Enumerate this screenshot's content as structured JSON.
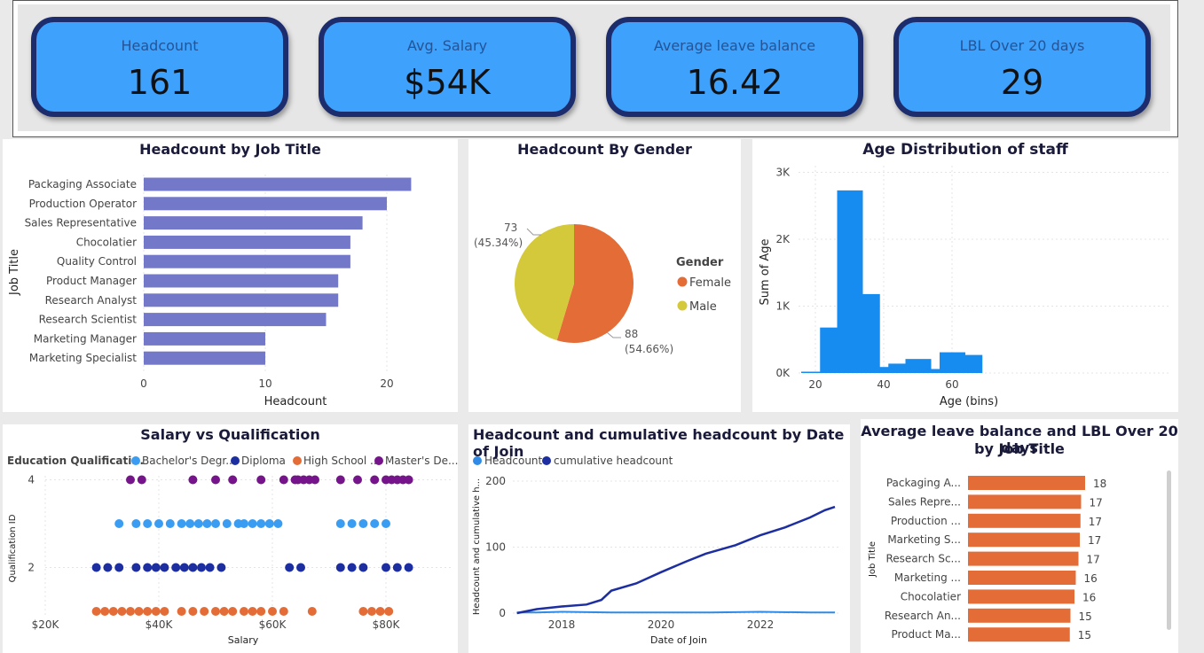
{
  "kpis": [
    {
      "title": "Headcount",
      "value": "161"
    },
    {
      "title": "Avg. Salary",
      "value": "$54K"
    },
    {
      "title": "Average leave balance",
      "value": "16.42"
    },
    {
      "title": "LBL Over 20 days",
      "value": "29"
    }
  ],
  "colors": {
    "kpi_fill": "#3ea1fb",
    "kpi_border": "#1c2c6d",
    "bar_purple": "#7478c9",
    "female": "#e46c36",
    "male": "#d4c93a",
    "bachelor": "#3b9df2",
    "diploma": "#1c2ea0",
    "highschool": "#e46c36",
    "masters": "#76158b",
    "headcount_line": "#2f8be6",
    "cumulative_line": "#1c2ea0",
    "age_bar": "#168bf0",
    "leave_bar": "#e46c36"
  },
  "chart_data": [
    {
      "id": "job",
      "type": "bar",
      "orientation": "horizontal",
      "title": "Headcount by Job Title",
      "xlabel": "Headcount",
      "ylabel": "Job Title",
      "categories": [
        "Packaging Associate",
        "Production Operator",
        "Sales Representative",
        "Chocolatier",
        "Quality Control",
        "Product Manager",
        "Research Analyst",
        "Research Scientist",
        "Marketing Manager",
        "Marketing Specialist"
      ],
      "values": [
        22,
        20,
        18,
        17,
        17,
        16,
        16,
        15,
        10,
        10
      ],
      "xlim": [
        0,
        24
      ],
      "xticks": [
        "0",
        "10",
        "20"
      ],
      "grid": true
    },
    {
      "id": "gender",
      "type": "pie",
      "title": "Headcount By Gender",
      "legend_title": "Gender",
      "legend_position": "right",
      "slices": [
        {
          "label": "Female",
          "value": 88,
          "count_label": "88",
          "pct_label": "(54.66%)"
        },
        {
          "label": "Male",
          "value": 73,
          "count_label": "73",
          "pct_label": "(45.34%)"
        }
      ]
    },
    {
      "id": "age",
      "type": "bar",
      "title": "Age Distribution of staff",
      "xlabel": "Age (bins)",
      "ylabel": "Sum of Age",
      "x": [
        20,
        25,
        30,
        35,
        40,
        45,
        50,
        55,
        60,
        65
      ],
      "values": [
        20,
        680,
        2730,
        1180,
        90,
        140,
        210,
        60,
        310,
        270
      ],
      "ylim": [
        0,
        3000
      ],
      "xlim": [
        17.5,
        70
      ],
      "yticks": [
        "0K",
        "1K",
        "2K",
        "3K"
      ],
      "xticks": [
        "20",
        "40",
        "60"
      ],
      "grid": true
    },
    {
      "id": "salary",
      "type": "scatter",
      "title": "Salary vs Qualification",
      "legend_title": "Education Qualificati...",
      "legend_position": "top",
      "xlabel": "Salary",
      "ylabel": "Qualification ID",
      "xlim": [
        20000,
        90000
      ],
      "ylim": [
        1,
        4
      ],
      "xticks": [
        "$20K",
        "$40K",
        "$60K",
        "$80K"
      ],
      "yticks": [
        "2",
        "4"
      ],
      "series": [
        {
          "name": "Bachelor's Degr...",
          "y": 3,
          "x": [
            33000,
            36000,
            38000,
            40000,
            42000,
            44000,
            45500,
            47000,
            48500,
            50000,
            52000,
            54000,
            55000,
            56500,
            58000,
            59500,
            61000,
            72000,
            74000,
            76000,
            78000,
            80000
          ]
        },
        {
          "name": "Diploma",
          "y": 2,
          "x": [
            29000,
            31000,
            33000,
            36000,
            38000,
            39500,
            41000,
            43000,
            44500,
            46000,
            47500,
            49000,
            51000,
            63000,
            65000,
            72000,
            74000,
            76000,
            80000,
            82000,
            84000
          ]
        },
        {
          "name": "High School ...",
          "y": 1,
          "x": [
            29000,
            30500,
            32000,
            33500,
            35000,
            36500,
            38000,
            39500,
            41000,
            44000,
            46000,
            48000,
            50000,
            51500,
            53000,
            55000,
            56500,
            58000,
            60000,
            62000,
            67000,
            76000,
            77500,
            79000,
            80500
          ]
        },
        {
          "name": "Master's De...",
          "y": 4,
          "x": [
            35000,
            37000,
            46000,
            50000,
            53000,
            58000,
            62000,
            64000,
            64500,
            65500,
            66500,
            67500,
            72000,
            75000,
            78000,
            80000,
            81000,
            82000,
            83000,
            84000
          ]
        }
      ]
    },
    {
      "id": "join",
      "type": "line",
      "title": "Headcount and cumulative headcount by Date of Join",
      "xlabel": "Date of Join",
      "ylabel": "Headcount and cumulative h...",
      "xlim": [
        2016.8,
        2023.8
      ],
      "ylim": [
        0,
        200
      ],
      "xticks": [
        "2018",
        "2020",
        "2022"
      ],
      "yticks": [
        "0",
        "100",
        "200"
      ],
      "series": [
        {
          "name": "Headcount",
          "x": [
            2017.1,
            2017.5,
            2018,
            2019,
            2020,
            2021,
            2022,
            2023,
            2023.5
          ],
          "y": [
            1,
            1,
            2,
            1,
            1,
            1,
            2,
            1,
            1
          ]
        },
        {
          "name": "cumulative headcount",
          "x": [
            2017.1,
            2017.5,
            2018.0,
            2018.5,
            2018.8,
            2019.0,
            2019.5,
            2020.0,
            2020.5,
            2020.9,
            2021.5,
            2022.0,
            2022.5,
            2023.0,
            2023.3,
            2023.5
          ],
          "y": [
            0,
            6,
            10,
            13,
            20,
            34,
            45,
            62,
            78,
            90,
            103,
            118,
            130,
            145,
            156,
            161
          ]
        }
      ]
    },
    {
      "id": "leave",
      "type": "bar",
      "orientation": "horizontal",
      "title": "Average leave balance and LBL Over 20 days by Job Title",
      "title_line1": "Average leave balance and LBL Over 20 days",
      "title_line2": "by Job Title",
      "ylabel": "Job Title",
      "categories": [
        "Packaging A...",
        "Sales Repre...",
        "Production ...",
        "Marketing S...",
        "Research Sc...",
        "Marketing ...",
        "Chocolatier",
        "Research An...",
        "Product Ma..."
      ],
      "values": [
        17.6,
        17.0,
        16.9,
        16.8,
        16.6,
        16.2,
        16.0,
        15.4,
        15.3
      ],
      "value_labels": [
        "18",
        "17",
        "17",
        "17",
        "17",
        "16",
        "16",
        "15",
        "15"
      ],
      "xlim": [
        0,
        17.6
      ]
    }
  ]
}
